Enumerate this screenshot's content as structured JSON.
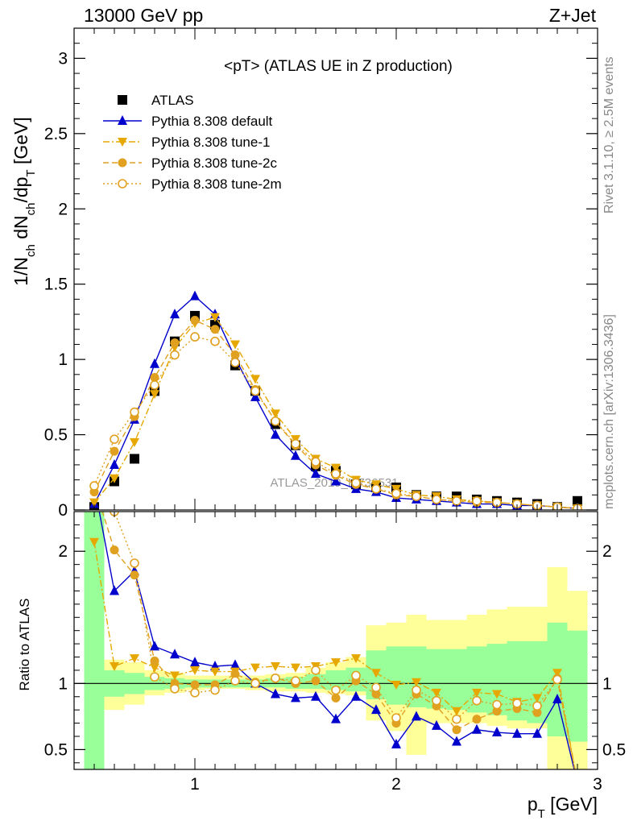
{
  "header": {
    "left": "13000 GeV pp",
    "right": "Z+Jet"
  },
  "side_labels": {
    "rivet": "Rivet 3.1.10, ≥ 2.5M events",
    "mcplots": "mcplots.cern.ch [arXiv:1306.3436]"
  },
  "watermark": "ATLAS_2019_I1736531",
  "chart_data": [
    {
      "type": "line",
      "panel": "main",
      "title": "<pT> (ATLAS UE in Z production)",
      "xlabel": "p_T [GeV]",
      "ylabel": "1/N_ch dN_ch/dp_T [GeV]",
      "xlim": [
        0.4,
        3.0
      ],
      "ylim": [
        0,
        3.2
      ],
      "xticks": [
        1,
        2,
        3
      ],
      "yticks": [
        0,
        0.5,
        1,
        1.5,
        2,
        2.5,
        3
      ],
      "ytick_labels": [
        "0",
        "0.5",
        "1",
        "1.5",
        "2",
        "2.5",
        "3"
      ],
      "legend_position": "top-left",
      "x": [
        0.5,
        0.6,
        0.7,
        0.8,
        0.9,
        1.0,
        1.1,
        1.2,
        1.3,
        1.4,
        1.5,
        1.6,
        1.7,
        1.8,
        1.9,
        2.0,
        2.1,
        2.2,
        2.3,
        2.4,
        2.5,
        2.6,
        2.7,
        2.8,
        2.9
      ],
      "series": [
        {
          "name": "ATLAS",
          "color": "#000000",
          "marker": "square",
          "line": "none",
          "values": [
            0.02,
            0.19,
            0.34,
            0.79,
            1.12,
            1.29,
            1.23,
            0.96,
            0.79,
            0.57,
            0.43,
            0.29,
            0.26,
            0.17,
            0.15,
            0.15,
            0.1,
            0.09,
            0.09,
            0.07,
            0.06,
            0.05,
            0.04,
            0.02,
            0.06
          ]
        },
        {
          "name": "Pythia 8.308 default",
          "color": "#0000cc",
          "marker": "triangle-up",
          "line": "solid",
          "values": [
            0.04,
            0.3,
            0.6,
            0.97,
            1.3,
            1.42,
            1.3,
            1.01,
            0.75,
            0.5,
            0.36,
            0.24,
            0.19,
            0.14,
            0.12,
            0.08,
            0.07,
            0.06,
            0.05,
            0.04,
            0.04,
            0.03,
            0.03,
            0.02,
            0.01
          ]
        },
        {
          "name": "Pythia 8.308 tune-1",
          "color": "#e6a800",
          "marker": "triangle-down",
          "line": "dashdot",
          "values": [
            0.05,
            0.21,
            0.45,
            0.77,
            1.08,
            1.24,
            1.28,
            1.1,
            0.87,
            0.64,
            0.47,
            0.34,
            0.28,
            0.2,
            0.17,
            0.14,
            0.1,
            0.09,
            0.07,
            0.06,
            0.05,
            0.04,
            0.03,
            0.02,
            0.01
          ]
        },
        {
          "name": "Pythia 8.308 tune-2c",
          "color": "#e0a020",
          "marker": "circle",
          "line": "dashed",
          "values": [
            0.12,
            0.39,
            0.62,
            0.88,
            1.11,
            1.26,
            1.2,
            1.03,
            0.8,
            0.59,
            0.43,
            0.3,
            0.23,
            0.17,
            0.14,
            0.1,
            0.09,
            0.07,
            0.06,
            0.05,
            0.05,
            0.04,
            0.03,
            0.02,
            0.01
          ]
        },
        {
          "name": "Pythia 8.308 tune-2m",
          "color": "#e0a020",
          "marker": "circle-open",
          "line": "dotted",
          "values": [
            0.16,
            0.47,
            0.65,
            0.83,
            1.03,
            1.15,
            1.12,
            0.98,
            0.79,
            0.59,
            0.44,
            0.32,
            0.24,
            0.18,
            0.14,
            0.11,
            0.09,
            0.07,
            0.06,
            0.06,
            0.05,
            0.04,
            0.03,
            0.02,
            0.01
          ]
        }
      ]
    },
    {
      "type": "line",
      "panel": "ratio",
      "ylabel": "Ratio to ATLAS",
      "xlim": [
        0.4,
        3.0
      ],
      "ylim": [
        0.35,
        2.3
      ],
      "xticks": [
        1,
        2,
        3
      ],
      "xtick_labels": [
        "1",
        "2",
        "3"
      ],
      "yticks": [
        0.5,
        1,
        2
      ],
      "ytick_labels": [
        "0.5",
        "1",
        "2"
      ],
      "reference_line": 1,
      "band_edges": [
        0.45,
        0.55,
        0.65,
        0.75,
        0.85,
        0.95,
        1.05,
        1.15,
        1.25,
        1.35,
        1.45,
        1.55,
        1.65,
        1.75,
        1.85,
        1.95,
        2.05,
        2.15,
        2.25,
        2.35,
        2.45,
        2.55,
        2.65,
        2.75,
        2.85,
        2.95
      ],
      "bands": [
        {
          "name": "ATLAS total uncertainty",
          "color": "#ffff99",
          "low": [
            0.34,
            0.8,
            0.84,
            0.91,
            0.93,
            0.95,
            0.96,
            0.96,
            0.95,
            0.94,
            0.94,
            0.93,
            0.92,
            0.91,
            0.72,
            0.64,
            0.46,
            0.7,
            0.7,
            0.7,
            0.68,
            0.66,
            0.66,
            0.34,
            0.34
          ],
          "high": [
            2.3,
            1.18,
            1.16,
            1.1,
            1.08,
            1.06,
            1.06,
            1.06,
            1.06,
            1.07,
            1.08,
            1.12,
            1.16,
            1.2,
            1.44,
            1.46,
            1.52,
            1.48,
            1.48,
            1.52,
            1.56,
            1.58,
            1.58,
            1.88,
            1.7
          ]
        },
        {
          "name": "ATLAS statistical uncertainty",
          "color": "#99ff99",
          "low": [
            0.34,
            0.9,
            0.92,
            0.95,
            0.96,
            0.97,
            0.97,
            0.97,
            0.97,
            0.97,
            0.96,
            0.96,
            0.95,
            0.94,
            0.88,
            0.84,
            0.82,
            0.81,
            0.8,
            0.78,
            0.76,
            0.72,
            0.7,
            0.6,
            0.56
          ],
          "high": [
            2.3,
            1.1,
            1.08,
            1.05,
            1.04,
            1.03,
            1.03,
            1.03,
            1.03,
            1.04,
            1.05,
            1.07,
            1.1,
            1.12,
            1.25,
            1.28,
            1.28,
            1.26,
            1.26,
            1.28,
            1.3,
            1.32,
            1.32,
            1.46,
            1.4
          ]
        }
      ],
      "x": [
        0.5,
        0.6,
        0.7,
        0.8,
        0.9,
        1.0,
        1.1,
        1.2,
        1.3,
        1.4,
        1.5,
        1.6,
        1.7,
        1.8,
        1.9,
        2.0,
        2.1,
        2.2,
        2.3,
        2.4,
        2.5,
        2.6,
        2.7,
        2.8,
        2.9
      ],
      "series": [
        {
          "name": "Pythia 8.308 default",
          "color": "#0000cc",
          "marker": "triangle-up",
          "line": "solid",
          "values": [
            2.5,
            1.7,
            1.85,
            1.28,
            1.22,
            1.16,
            1.13,
            1.14,
            1.0,
            0.92,
            0.89,
            0.9,
            0.73,
            0.9,
            0.8,
            0.54,
            0.75,
            0.68,
            0.56,
            0.65,
            0.63,
            0.62,
            0.62,
            0.88,
            0.25
          ]
        },
        {
          "name": "Pythia 8.308 tune-1",
          "color": "#e6a800",
          "marker": "triangle-down",
          "line": "dashdot",
          "values": [
            2.07,
            1.13,
            1.19,
            1.12,
            1.06,
            1.1,
            1.09,
            1.09,
            1.12,
            1.13,
            1.12,
            1.13,
            1.16,
            1.19,
            1.08,
            0.99,
            1.01,
            0.93,
            0.79,
            0.93,
            0.92,
            0.86,
            0.89,
            1.08,
            0.25
          ]
        },
        {
          "name": "Pythia 8.308 tune-2c",
          "color": "#e0a020",
          "marker": "circle",
          "line": "dashed",
          "values": [
            2.5,
            2.01,
            1.82,
            1.17,
            1.0,
            0.99,
            0.99,
            1.07,
            1.01,
            1.04,
            1.0,
            1.02,
            0.89,
            1.02,
            0.92,
            0.7,
            0.92,
            0.83,
            0.65,
            0.73,
            0.79,
            0.81,
            0.78,
            1.04,
            0.25
          ]
        },
        {
          "name": "Pythia 8.308 tune-2m",
          "color": "#e0a020",
          "marker": "circle-open",
          "line": "dotted",
          "values": [
            2.5,
            2.3,
            1.91,
            1.05,
            0.96,
            0.93,
            0.95,
            1.02,
            1.0,
            1.04,
            1.02,
            1.1,
            0.95,
            1.06,
            0.97,
            0.74,
            0.95,
            0.87,
            0.73,
            0.87,
            0.84,
            0.85,
            0.83,
            1.03,
            0.25
          ]
        }
      ]
    }
  ]
}
